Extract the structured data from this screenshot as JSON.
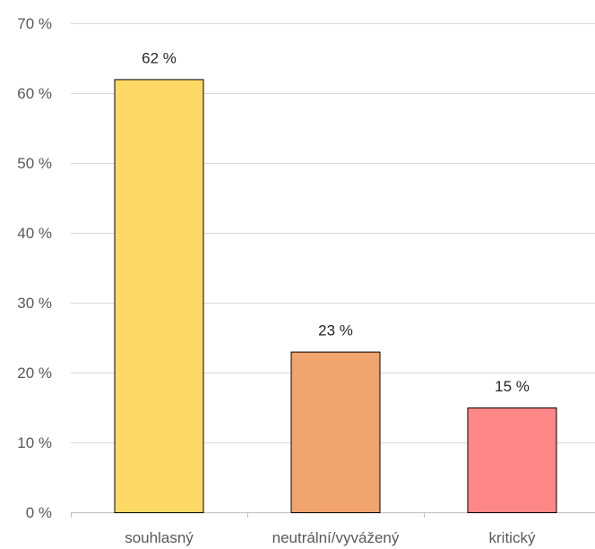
{
  "chart_data": {
    "type": "bar",
    "categories": [
      "souhlasný",
      "neutrální/vyvážený",
      "kritický"
    ],
    "values": [
      62,
      23,
      15
    ],
    "value_labels": [
      "62 %",
      "23 %",
      "15 %"
    ],
    "bar_colors": [
      "#FFD966",
      "#F0A46E",
      "#FF8787"
    ],
    "ylim": [
      0,
      70
    ],
    "y_ticks": [
      0,
      10,
      20,
      30,
      40,
      50,
      60,
      70
    ],
    "y_tick_labels": [
      "0 %",
      "10 %",
      "20 %",
      "30 %",
      "40 %",
      "50 %",
      "60 %",
      "70 %"
    ],
    "title": "",
    "xlabel": "",
    "ylabel": "",
    "grid": true,
    "legend": "none"
  }
}
